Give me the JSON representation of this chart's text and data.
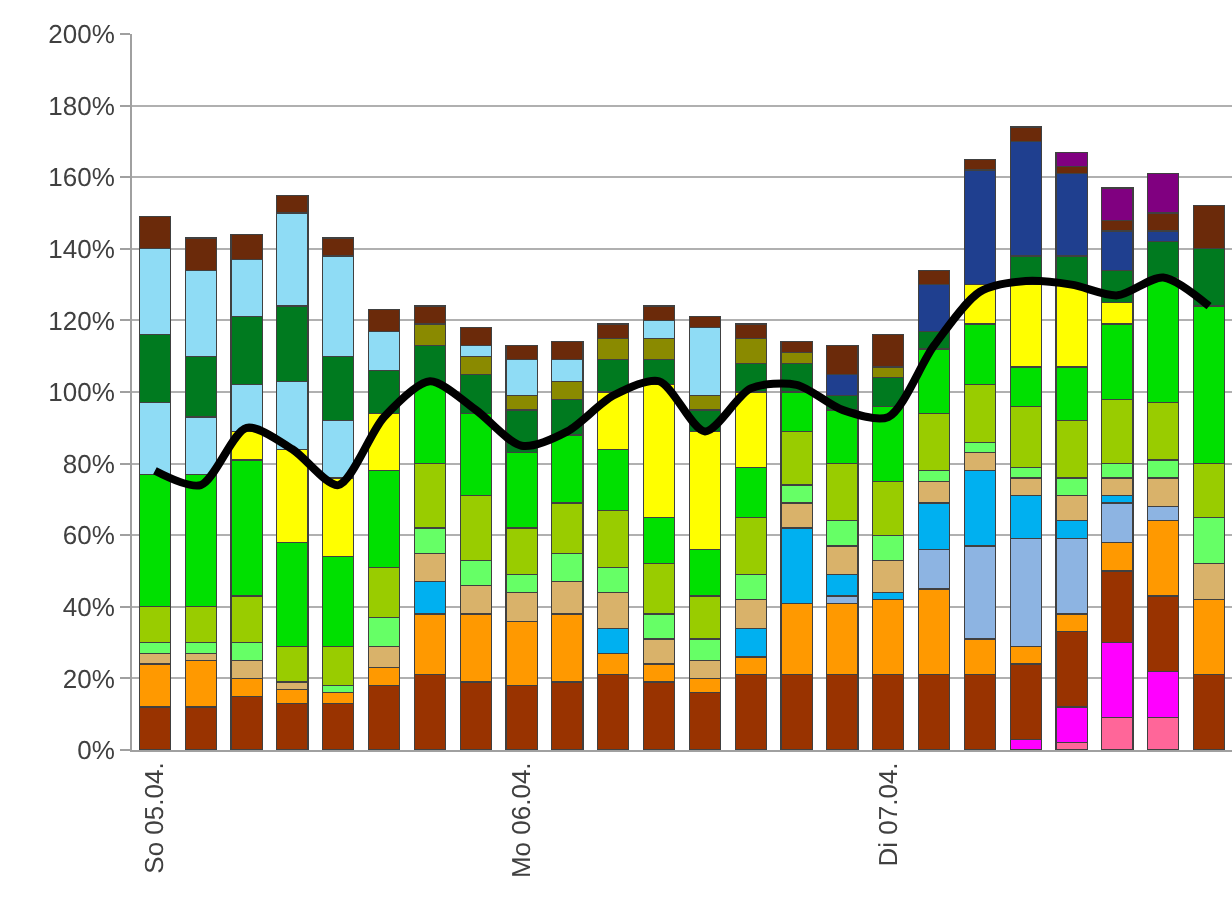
{
  "chart_data": {
    "type": "bar",
    "stacked": true,
    "grid": "y",
    "categories": [
      "So 05.04.",
      null,
      null,
      null,
      null,
      null,
      null,
      null,
      "Mo 06.04.",
      null,
      null,
      null,
      null,
      null,
      null,
      null,
      "Di 07.04.",
      null,
      null,
      null,
      null,
      null,
      null,
      null
    ],
    "ylim": [
      0,
      200
    ],
    "yticks": [
      {
        "value": 0,
        "label": "0%"
      },
      {
        "value": 20,
        "label": "20%"
      },
      {
        "value": 40,
        "label": "40%"
      },
      {
        "value": 60,
        "label": "60%"
      },
      {
        "value": 80,
        "label": "80%"
      },
      {
        "value": 100,
        "label": "100%"
      },
      {
        "value": 120,
        "label": "120%"
      },
      {
        "value": 140,
        "label": "140%"
      },
      {
        "value": 160,
        "label": "160%"
      },
      {
        "value": 180,
        "label": "180%"
      },
      {
        "value": 200,
        "label": "200%"
      }
    ],
    "series": [
      {
        "color": "#ff6699",
        "values": [
          null,
          null,
          null,
          null,
          null,
          null,
          null,
          null,
          null,
          null,
          null,
          null,
          null,
          null,
          null,
          null,
          null,
          null,
          null,
          null,
          2,
          9,
          9,
          null
        ]
      },
      {
        "color": "#ff00ff",
        "values": [
          null,
          null,
          null,
          null,
          null,
          null,
          null,
          null,
          null,
          null,
          null,
          null,
          null,
          null,
          null,
          null,
          null,
          null,
          null,
          3,
          10,
          21,
          13,
          null
        ]
      },
      {
        "color": "#993300",
        "values": [
          12,
          12,
          15,
          13,
          13,
          18,
          21,
          19,
          18,
          19,
          21,
          19,
          16,
          21,
          21,
          21,
          21,
          21,
          21,
          21,
          21,
          20,
          21,
          21
        ]
      },
      {
        "color": "#ff9900",
        "values": [
          12,
          13,
          5,
          4,
          3,
          5,
          17,
          19,
          18,
          19,
          6,
          5,
          4,
          5,
          20,
          20,
          21,
          24,
          10,
          5,
          5,
          8,
          21,
          21
        ]
      },
      {
        "color": "#8db4e2",
        "values": [
          null,
          null,
          null,
          null,
          null,
          null,
          null,
          null,
          null,
          null,
          null,
          null,
          null,
          null,
          null,
          2,
          null,
          11,
          26,
          30,
          21,
          11,
          4,
          null
        ]
      },
      {
        "color": "#00b0f0",
        "values": [
          null,
          null,
          null,
          null,
          null,
          null,
          9,
          null,
          null,
          null,
          7,
          null,
          null,
          8,
          21,
          6,
          2,
          13,
          21,
          12,
          5,
          2,
          null,
          null
        ]
      },
      {
        "color": "#d9b26a",
        "values": [
          3,
          2,
          5,
          2,
          null,
          6,
          8,
          8,
          8,
          9,
          10,
          7,
          5,
          8,
          7,
          8,
          9,
          6,
          5,
          5,
          7,
          5,
          8,
          10
        ]
      },
      {
        "color": "#66ff66",
        "values": [
          3,
          3,
          5,
          null,
          2,
          8,
          7,
          7,
          5,
          8,
          7,
          7,
          6,
          7,
          5,
          7,
          7,
          3,
          3,
          3,
          5,
          4,
          5,
          13
        ]
      },
      {
        "color": "#99cc00",
        "values": [
          10,
          10,
          13,
          10,
          11,
          14,
          18,
          18,
          13,
          14,
          16,
          14,
          12,
          16,
          15,
          16,
          15,
          16,
          16,
          17,
          16,
          18,
          16,
          15
        ]
      },
      {
        "color": "#00e000",
        "values": [
          37,
          37,
          38,
          29,
          25,
          27,
          22,
          23,
          21,
          19,
          17,
          13,
          13,
          14,
          11,
          15,
          21,
          18,
          17,
          11,
          15,
          21,
          35,
          44
        ]
      },
      {
        "color": "#ffff00",
        "values": [
          null,
          null,
          8,
          26,
          22,
          16,
          null,
          null,
          null,
          null,
          16,
          37,
          33,
          21,
          null,
          null,
          null,
          null,
          11,
          23,
          23,
          6,
          null,
          null
        ]
      },
      {
        "color": "#8fdcf5",
        "values": [
          20,
          16,
          13,
          19,
          16,
          null,
          null,
          null,
          null,
          null,
          null,
          null,
          null,
          null,
          null,
          null,
          null,
          null,
          null,
          null,
          null,
          null,
          null,
          null
        ]
      },
      {
        "color": "#007a1f",
        "values": [
          19,
          17,
          19,
          21,
          18,
          12,
          11,
          11,
          12,
          10,
          9,
          7,
          6,
          8,
          8,
          4,
          8,
          5,
          null,
          8,
          8,
          9,
          10,
          16
        ]
      },
      {
        "color": "#8a8a00",
        "values": [
          null,
          null,
          null,
          null,
          null,
          null,
          6,
          5,
          4,
          5,
          6,
          6,
          4,
          7,
          3,
          null,
          3,
          null,
          null,
          null,
          null,
          null,
          null,
          null
        ]
      },
      {
        "color": "#8fdcf5",
        "values": [
          24,
          24,
          16,
          26,
          28,
          11,
          null,
          3,
          10,
          6,
          null,
          5,
          19,
          null,
          null,
          null,
          null,
          null,
          null,
          null,
          null,
          null,
          null,
          null
        ]
      },
      {
        "color": "#1f3f8f",
        "values": [
          null,
          null,
          null,
          null,
          null,
          null,
          null,
          null,
          null,
          null,
          null,
          null,
          null,
          null,
          null,
          6,
          null,
          13,
          32,
          32,
          23,
          11,
          3,
          null
        ]
      },
      {
        "color": "#6b2a0a",
        "values": [
          9,
          9,
          7,
          5,
          5,
          6,
          5,
          5,
          4,
          5,
          4,
          4,
          3,
          4,
          3,
          8,
          9,
          4,
          3,
          4,
          2,
          3,
          5,
          12
        ]
      },
      {
        "color": "#800080",
        "values": [
          null,
          null,
          null,
          null,
          null,
          null,
          null,
          null,
          null,
          null,
          null,
          null,
          null,
          null,
          null,
          null,
          null,
          null,
          null,
          null,
          4,
          9,
          11,
          null
        ]
      },
      {
        "type": "line",
        "color": "#000000",
        "values": [
          78,
          74,
          90,
          84,
          74,
          93,
          103,
          95,
          85,
          89,
          99,
          103,
          89,
          101,
          102,
          95,
          93,
          113,
          128,
          131,
          130,
          127,
          132,
          124
        ]
      }
    ]
  }
}
